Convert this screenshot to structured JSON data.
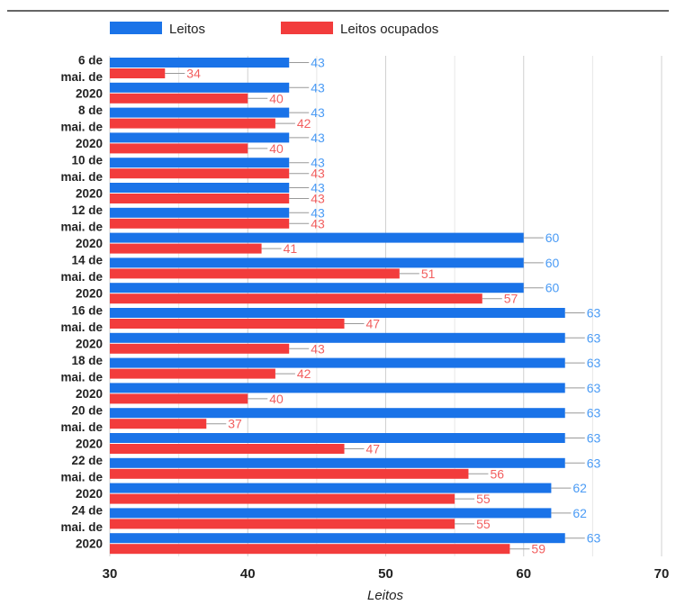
{
  "chart_data": {
    "type": "bar",
    "orientation": "horizontal",
    "xlabel": "Leitos",
    "xlim": [
      30,
      70
    ],
    "xticks": [
      30,
      40,
      50,
      60,
      70
    ],
    "grid": true,
    "legend": "top",
    "category_labels": [
      "6 de",
      "mai. de",
      "2020",
      "8 de",
      "mai. de",
      "2020",
      "10 de",
      "mai. de",
      "2020",
      "12 de",
      "mai. de",
      "2020",
      "14 de",
      "mai. de",
      "2020",
      "16 de",
      "mai. de",
      "2020",
      "18 de",
      "mai. de",
      "2020",
      "20 de",
      "mai. de",
      "2020",
      "22 de",
      "mai. de",
      "2020",
      "24 de",
      "mai. de",
      "2020"
    ],
    "series": [
      {
        "name": "Leitos",
        "color": "#1a73e8",
        "values": [
          43,
          43,
          43,
          43,
          43,
          43,
          43,
          60,
          60,
          60,
          63,
          63,
          63,
          63,
          63,
          63,
          63,
          62,
          62,
          63
        ]
      },
      {
        "name": "Leitos ocupados",
        "color": "#f23c3c",
        "values": [
          34,
          40,
          42,
          40,
          43,
          43,
          43,
          41,
          51,
          57,
          47,
          43,
          42,
          40,
          37,
          47,
          56,
          55,
          55,
          59
        ]
      }
    ]
  }
}
